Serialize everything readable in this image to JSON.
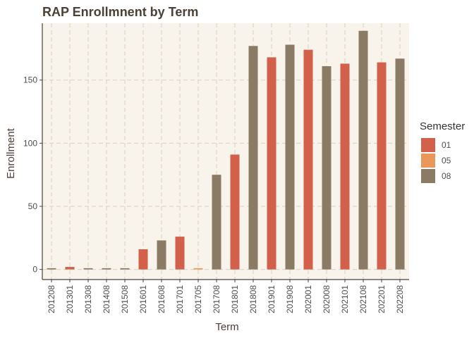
{
  "chart_data": {
    "type": "bar",
    "title": "RAP Enrollmnent by Term",
    "xlabel": "Term",
    "ylabel": "Enrollment",
    "ylim": [
      -8,
      195
    ],
    "yticks": [
      0,
      50,
      100,
      150
    ],
    "grid": true,
    "legend": {
      "title": "Semester",
      "position": "right",
      "entries": [
        {
          "label": "01",
          "color": "#d2604a"
        },
        {
          "label": "05",
          "color": "#e9975a"
        },
        {
          "label": "08",
          "color": "#8b7b65"
        }
      ]
    },
    "categories": [
      "201208",
      "201301",
      "201308",
      "201408",
      "201508",
      "201601",
      "201608",
      "201701",
      "201705",
      "201708",
      "201801",
      "201808",
      "201901",
      "201908",
      "202001",
      "202008",
      "202101",
      "202108",
      "202201",
      "202208"
    ],
    "semester": [
      "08",
      "01",
      "08",
      "08",
      "08",
      "01",
      "08",
      "01",
      "05",
      "08",
      "01",
      "08",
      "01",
      "08",
      "01",
      "08",
      "01",
      "08",
      "01",
      "08"
    ],
    "values": [
      1,
      2,
      1,
      1,
      1,
      16,
      23,
      26,
      1,
      75,
      91,
      177,
      168,
      178,
      174,
      161,
      163,
      189,
      164,
      167
    ]
  },
  "colors": {
    "panel_bg": "#f8f4ec",
    "grid": "#ddd5c8",
    "axis": "#4a4035"
  }
}
